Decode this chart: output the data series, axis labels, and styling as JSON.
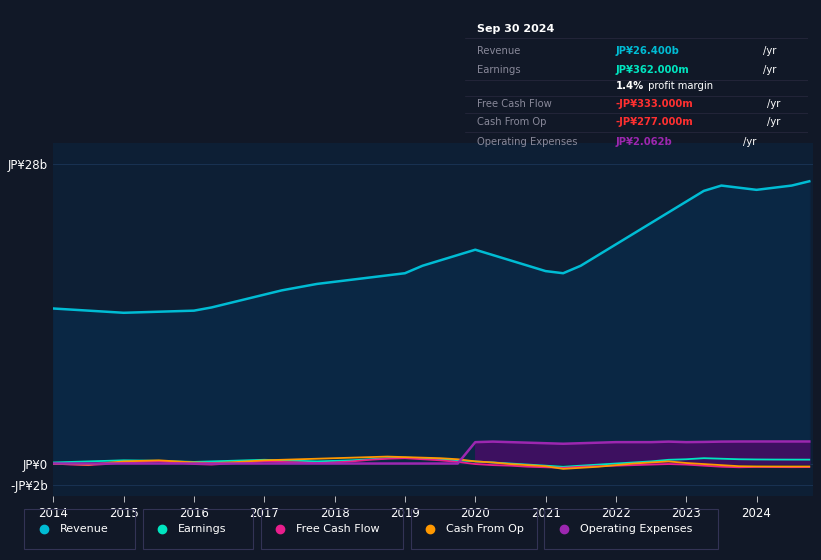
{
  "bg_color": "#111827",
  "plot_bg_color": "#0d1f35",
  "grid_color": "#1e3a5f",
  "title_box": {
    "date": "Sep 30 2024",
    "revenue_label": "Revenue",
    "revenue_value": "JP¥26.400b",
    "earnings_label": "Earnings",
    "earnings_value": "JP¥362.000m",
    "profit_margin_bold": "1.4%",
    "profit_margin_rest": " profit margin",
    "fcf_label": "Free Cash Flow",
    "fcf_value": "-JP¥333.000m",
    "cfop_label": "Cash From Op",
    "cfop_value": "-JP¥277.000m",
    "opex_label": "Operating Expenses",
    "opex_value": "JP¥2.062b"
  },
  "colors": {
    "revenue": "#00bcd4",
    "earnings": "#00e5c0",
    "fcf": "#e91e8c",
    "cashfromop": "#ff9800",
    "opex": "#9c27b0",
    "revenue_fill": "#0a2744",
    "opex_fill": "#3d1060"
  },
  "ylim_low": -3000000000,
  "ylim_high": 30000000000,
  "yticks": [
    28000000000,
    0,
    -2000000000
  ],
  "ytick_labels": [
    "JP¥28b",
    "JP¥0",
    "-JP¥2b"
  ],
  "x_years": [
    2014.0,
    2014.25,
    2014.5,
    2014.75,
    2015.0,
    2015.25,
    2015.5,
    2015.75,
    2016.0,
    2016.25,
    2016.5,
    2016.75,
    2017.0,
    2017.25,
    2017.5,
    2017.75,
    2018.0,
    2018.25,
    2018.5,
    2018.75,
    2019.0,
    2019.25,
    2019.5,
    2019.75,
    2020.0,
    2020.25,
    2020.5,
    2020.75,
    2021.0,
    2021.25,
    2021.5,
    2021.75,
    2022.0,
    2022.25,
    2022.5,
    2022.75,
    2023.0,
    2023.25,
    2023.5,
    2023.75,
    2024.0,
    2024.25,
    2024.5,
    2024.75
  ],
  "revenue": [
    14500000000,
    14400000000,
    14300000000,
    14200000000,
    14100000000,
    14150000000,
    14200000000,
    14250000000,
    14300000000,
    14600000000,
    15000000000,
    15400000000,
    15800000000,
    16200000000,
    16500000000,
    16800000000,
    17000000000,
    17200000000,
    17400000000,
    17600000000,
    17800000000,
    18500000000,
    19000000000,
    19500000000,
    20000000000,
    19500000000,
    19000000000,
    18500000000,
    18000000000,
    17800000000,
    18500000000,
    19500000000,
    20500000000,
    21500000000,
    22500000000,
    23500000000,
    24500000000,
    25500000000,
    26000000000,
    25800000000,
    25600000000,
    25800000000,
    26000000000,
    26400000000
  ],
  "earnings": [
    100000000,
    150000000,
    200000000,
    250000000,
    300000000,
    280000000,
    250000000,
    200000000,
    150000000,
    200000000,
    250000000,
    300000000,
    350000000,
    300000000,
    250000000,
    200000000,
    250000000,
    300000000,
    400000000,
    500000000,
    550000000,
    500000000,
    400000000,
    300000000,
    200000000,
    100000000,
    0,
    -100000000,
    -200000000,
    -300000000,
    -200000000,
    -100000000,
    0,
    100000000,
    200000000,
    350000000,
    400000000,
    500000000,
    450000000,
    400000000,
    380000000,
    370000000,
    365000000,
    362000000
  ],
  "fcf": [
    0,
    -100000000,
    -150000000,
    -50000000,
    100000000,
    150000000,
    200000000,
    100000000,
    -50000000,
    -100000000,
    0,
    100000000,
    200000000,
    150000000,
    100000000,
    50000000,
    100000000,
    200000000,
    350000000,
    450000000,
    500000000,
    400000000,
    300000000,
    150000000,
    -50000000,
    -150000000,
    -200000000,
    -300000000,
    -350000000,
    -400000000,
    -300000000,
    -250000000,
    -200000000,
    -150000000,
    -100000000,
    -50000000,
    -100000000,
    -200000000,
    -300000000,
    -350000000,
    -320000000,
    -330000000,
    -340000000,
    -333000000
  ],
  "cashfromop": [
    -50000000,
    -50000000,
    -100000000,
    50000000,
    200000000,
    250000000,
    300000000,
    200000000,
    100000000,
    50000000,
    100000000,
    200000000,
    300000000,
    350000000,
    400000000,
    450000000,
    500000000,
    550000000,
    600000000,
    650000000,
    600000000,
    550000000,
    500000000,
    400000000,
    200000000,
    100000000,
    -50000000,
    -150000000,
    -250000000,
    -500000000,
    -400000000,
    -300000000,
    -150000000,
    0,
    100000000,
    200000000,
    50000000,
    -50000000,
    -150000000,
    -250000000,
    -270000000,
    -275000000,
    -278000000,
    -277000000
  ],
  "opex": [
    0,
    0,
    0,
    0,
    0,
    0,
    0,
    0,
    0,
    0,
    0,
    0,
    0,
    0,
    0,
    0,
    0,
    0,
    0,
    0,
    0,
    0,
    0,
    0,
    2000000000,
    2050000000,
    2000000000,
    1950000000,
    1900000000,
    1850000000,
    1900000000,
    1950000000,
    2000000000,
    2000000000,
    2000000000,
    2050000000,
    2000000000,
    2020000000,
    2050000000,
    2060000000,
    2062000000,
    2062000000,
    2062000000,
    2062000000
  ],
  "x_ticks": [
    2014,
    2015,
    2016,
    2017,
    2018,
    2019,
    2020,
    2021,
    2022,
    2023,
    2024
  ],
  "x_tick_labels": [
    "2014",
    "2015",
    "2016",
    "2017",
    "2018",
    "2019",
    "2020",
    "2021",
    "2022",
    "2023",
    "2024"
  ],
  "legend_items": [
    {
      "label": "Revenue",
      "color": "#00bcd4"
    },
    {
      "label": "Earnings",
      "color": "#00e5c0"
    },
    {
      "label": "Free Cash Flow",
      "color": "#e91e8c"
    },
    {
      "label": "Cash From Op",
      "color": "#ff9800"
    },
    {
      "label": "Operating Expenses",
      "color": "#9c27b0"
    }
  ]
}
